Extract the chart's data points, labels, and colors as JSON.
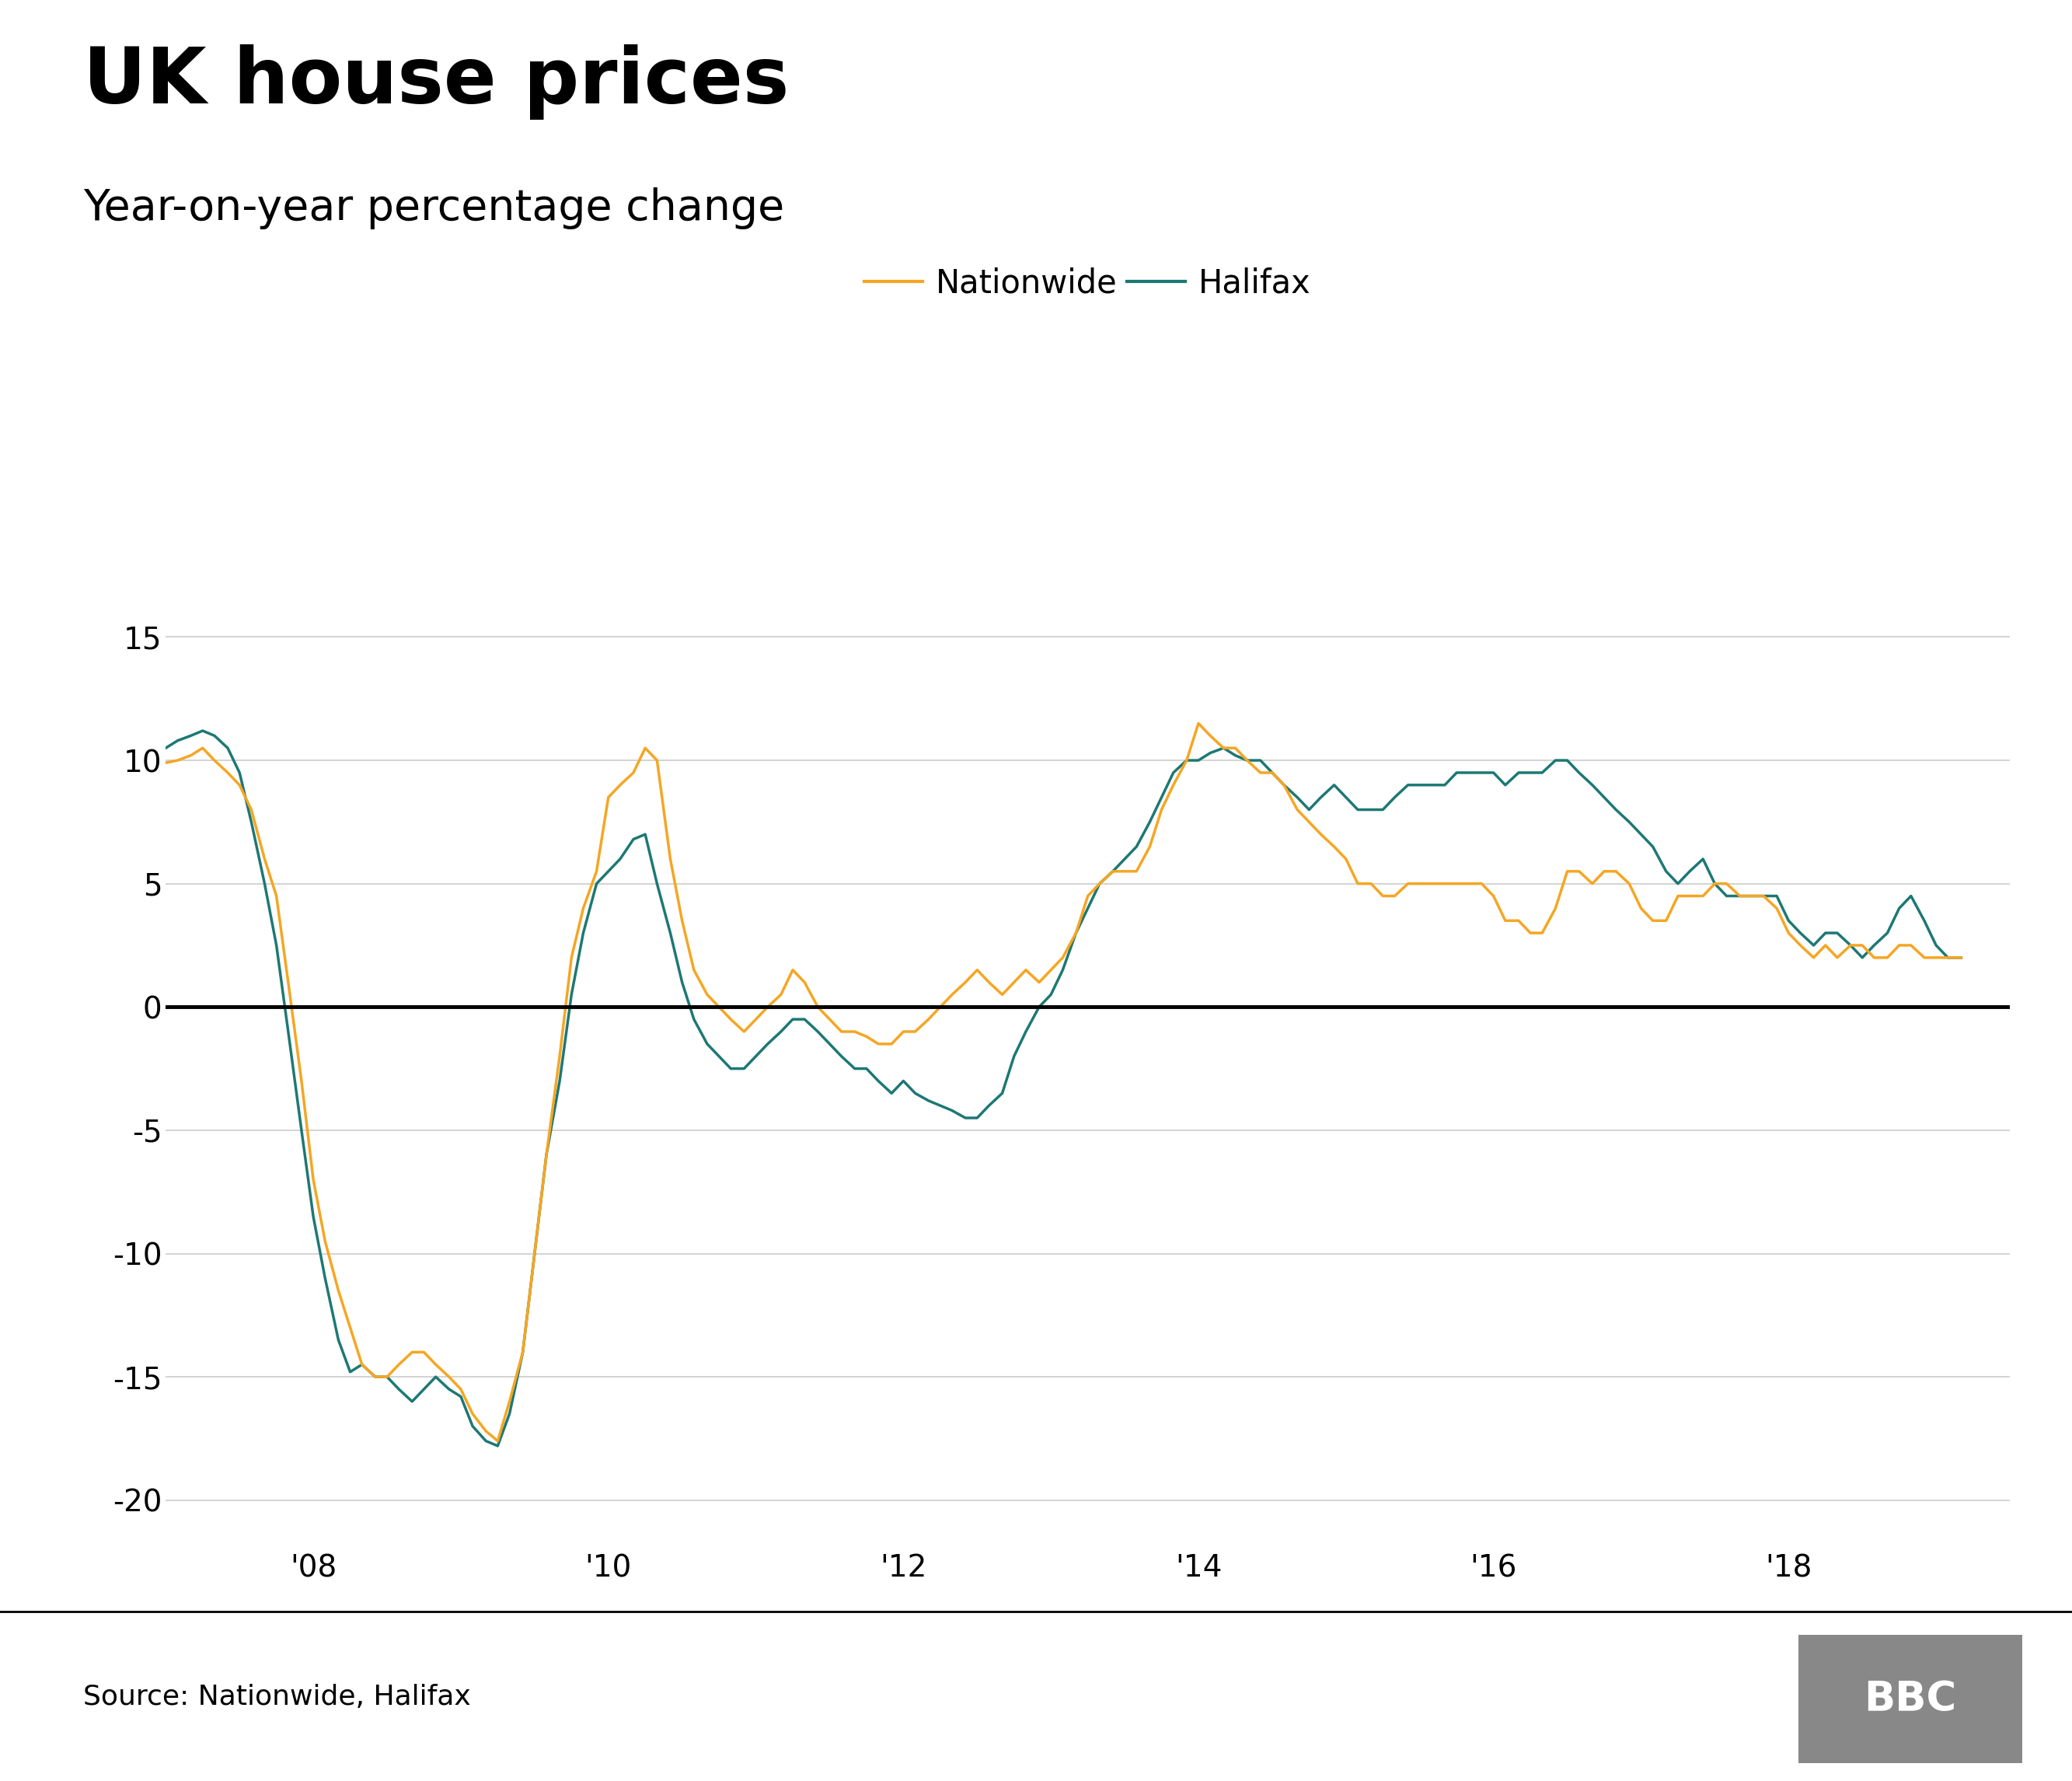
{
  "title": "UK house prices",
  "subtitle": "Year-on-year percentage change",
  "source": "Source: Nationwide, Halifax",
  "nationwide_color": "#F5A623",
  "halifax_color": "#1D7874",
  "background_color": "#ffffff",
  "ylim": [
    -22,
    17
  ],
  "yticks": [
    -20,
    -15,
    -10,
    -5,
    0,
    5,
    10,
    15
  ],
  "xtick_labels": [
    "'08",
    "'10",
    "'12",
    "'14",
    "'16",
    "'18"
  ],
  "nationwide": {
    "x": [
      2007.0,
      2007.08,
      2007.17,
      2007.25,
      2007.33,
      2007.42,
      2007.5,
      2007.58,
      2007.67,
      2007.75,
      2007.83,
      2007.92,
      2008.0,
      2008.08,
      2008.17,
      2008.25,
      2008.33,
      2008.42,
      2008.5,
      2008.58,
      2008.67,
      2008.75,
      2008.83,
      2008.92,
      2009.0,
      2009.08,
      2009.17,
      2009.25,
      2009.33,
      2009.42,
      2009.5,
      2009.58,
      2009.67,
      2009.75,
      2009.83,
      2009.92,
      2010.0,
      2010.08,
      2010.17,
      2010.25,
      2010.33,
      2010.42,
      2010.5,
      2010.58,
      2010.67,
      2010.75,
      2010.83,
      2010.92,
      2011.0,
      2011.08,
      2011.17,
      2011.25,
      2011.33,
      2011.42,
      2011.5,
      2011.58,
      2011.67,
      2011.75,
      2011.83,
      2011.92,
      2012.0,
      2012.08,
      2012.17,
      2012.25,
      2012.33,
      2012.42,
      2012.5,
      2012.58,
      2012.67,
      2012.75,
      2012.83,
      2012.92,
      2013.0,
      2013.08,
      2013.17,
      2013.25,
      2013.33,
      2013.42,
      2013.5,
      2013.58,
      2013.67,
      2013.75,
      2013.83,
      2013.92,
      2014.0,
      2014.08,
      2014.17,
      2014.25,
      2014.33,
      2014.42,
      2014.5,
      2014.58,
      2014.67,
      2014.75,
      2014.83,
      2014.92,
      2015.0,
      2015.08,
      2015.17,
      2015.25,
      2015.33,
      2015.42,
      2015.5,
      2015.58,
      2015.67,
      2015.75,
      2015.83,
      2015.92,
      2016.0,
      2016.08,
      2016.17,
      2016.25,
      2016.33,
      2016.42,
      2016.5,
      2016.58,
      2016.67,
      2016.75,
      2016.83,
      2016.92,
      2017.0,
      2017.08,
      2017.17,
      2017.25,
      2017.33,
      2017.42,
      2017.5,
      2017.58,
      2017.67,
      2017.75,
      2017.83,
      2017.92,
      2018.0,
      2018.08,
      2018.17,
      2018.25,
      2018.33,
      2018.42,
      2018.5,
      2018.58,
      2018.67,
      2018.75,
      2018.83,
      2018.92,
      2019.0,
      2019.08,
      2019.17
    ],
    "y": [
      9.9,
      10.0,
      10.2,
      10.5,
      10.0,
      9.5,
      9.0,
      8.0,
      6.0,
      4.5,
      1.0,
      -3.0,
      -7.0,
      -9.5,
      -11.5,
      -13.0,
      -14.5,
      -15.0,
      -15.0,
      -14.5,
      -14.0,
      -14.0,
      -14.5,
      -15.0,
      -15.5,
      -16.5,
      -17.2,
      -17.6,
      -16.0,
      -14.0,
      -10.0,
      -6.0,
      -2.0,
      2.0,
      4.0,
      5.5,
      8.5,
      9.0,
      9.5,
      10.5,
      10.0,
      6.0,
      3.5,
      1.5,
      0.5,
      0.0,
      -0.5,
      -1.0,
      -0.5,
      0.0,
      0.5,
      1.5,
      1.0,
      0.0,
      -0.5,
      -1.0,
      -1.0,
      -1.2,
      -1.5,
      -1.5,
      -1.0,
      -1.0,
      -0.5,
      0.0,
      0.5,
      1.0,
      1.5,
      1.0,
      0.5,
      1.0,
      1.5,
      1.0,
      1.5,
      2.0,
      3.0,
      4.5,
      5.0,
      5.5,
      5.5,
      5.5,
      6.5,
      8.0,
      9.0,
      10.0,
      11.5,
      11.0,
      10.5,
      10.5,
      10.0,
      9.5,
      9.5,
      9.0,
      8.0,
      7.5,
      7.0,
      6.5,
      6.0,
      5.0,
      5.0,
      4.5,
      4.5,
      5.0,
      5.0,
      5.0,
      5.0,
      5.0,
      5.0,
      5.0,
      4.5,
      3.5,
      3.5,
      3.0,
      3.0,
      4.0,
      5.5,
      5.5,
      5.0,
      5.5,
      5.5,
      5.0,
      4.0,
      3.5,
      3.5,
      4.5,
      4.5,
      4.5,
      5.0,
      5.0,
      4.5,
      4.5,
      4.5,
      4.0,
      3.0,
      2.5,
      2.0,
      2.5,
      2.0,
      2.5,
      2.5,
      2.0,
      2.0,
      2.5,
      2.5,
      2.0,
      2.0,
      2.0,
      2.0
    ]
  },
  "halifax": {
    "x": [
      2007.0,
      2007.08,
      2007.17,
      2007.25,
      2007.33,
      2007.42,
      2007.5,
      2007.58,
      2007.67,
      2007.75,
      2007.83,
      2007.92,
      2008.0,
      2008.08,
      2008.17,
      2008.25,
      2008.33,
      2008.42,
      2008.5,
      2008.58,
      2008.67,
      2008.75,
      2008.83,
      2008.92,
      2009.0,
      2009.08,
      2009.17,
      2009.25,
      2009.33,
      2009.42,
      2009.5,
      2009.58,
      2009.67,
      2009.75,
      2009.83,
      2009.92,
      2010.0,
      2010.08,
      2010.17,
      2010.25,
      2010.33,
      2010.42,
      2010.5,
      2010.58,
      2010.67,
      2010.75,
      2010.83,
      2010.92,
      2011.0,
      2011.08,
      2011.17,
      2011.25,
      2011.33,
      2011.42,
      2011.5,
      2011.58,
      2011.67,
      2011.75,
      2011.83,
      2011.92,
      2012.0,
      2012.08,
      2012.17,
      2012.25,
      2012.33,
      2012.42,
      2012.5,
      2012.58,
      2012.67,
      2012.75,
      2012.83,
      2012.92,
      2013.0,
      2013.08,
      2013.17,
      2013.25,
      2013.33,
      2013.42,
      2013.5,
      2013.58,
      2013.67,
      2013.75,
      2013.83,
      2013.92,
      2014.0,
      2014.08,
      2014.17,
      2014.25,
      2014.33,
      2014.42,
      2014.5,
      2014.58,
      2014.67,
      2014.75,
      2014.83,
      2014.92,
      2015.0,
      2015.08,
      2015.17,
      2015.25,
      2015.33,
      2015.42,
      2015.5,
      2015.58,
      2015.67,
      2015.75,
      2015.83,
      2015.92,
      2016.0,
      2016.08,
      2016.17,
      2016.25,
      2016.33,
      2016.42,
      2016.5,
      2016.58,
      2016.67,
      2016.75,
      2016.83,
      2016.92,
      2017.0,
      2017.08,
      2017.17,
      2017.25,
      2017.33,
      2017.42,
      2017.5,
      2017.58,
      2017.67,
      2017.75,
      2017.83,
      2017.92,
      2018.0,
      2018.08,
      2018.17,
      2018.25,
      2018.33,
      2018.42,
      2018.5,
      2018.58,
      2018.67,
      2018.75,
      2018.83,
      2018.92,
      2019.0,
      2019.08,
      2019.17
    ],
    "y": [
      10.5,
      10.8,
      11.0,
      11.2,
      11.0,
      10.5,
      9.5,
      7.5,
      5.0,
      2.5,
      -1.0,
      -5.0,
      -8.5,
      -11.0,
      -13.5,
      -14.8,
      -14.5,
      -15.0,
      -15.0,
      -15.5,
      -16.0,
      -15.5,
      -15.0,
      -15.5,
      -15.8,
      -17.0,
      -17.6,
      -17.8,
      -16.5,
      -14.0,
      -10.0,
      -6.0,
      -3.0,
      0.5,
      3.0,
      5.0,
      5.5,
      6.0,
      6.8,
      7.0,
      5.0,
      3.0,
      1.0,
      -0.5,
      -1.5,
      -2.0,
      -2.5,
      -2.5,
      -2.0,
      -1.5,
      -1.0,
      -0.5,
      -0.5,
      -1.0,
      -1.5,
      -2.0,
      -2.5,
      -2.5,
      -3.0,
      -3.5,
      -3.0,
      -3.5,
      -3.8,
      -4.0,
      -4.2,
      -4.5,
      -4.5,
      -4.0,
      -3.5,
      -2.0,
      -1.0,
      0.0,
      0.5,
      1.5,
      3.0,
      4.0,
      5.0,
      5.5,
      6.0,
      6.5,
      7.5,
      8.5,
      9.5,
      10.0,
      10.0,
      10.3,
      10.5,
      10.2,
      10.0,
      10.0,
      9.5,
      9.0,
      8.5,
      8.0,
      8.5,
      9.0,
      8.5,
      8.0,
      8.0,
      8.0,
      8.5,
      9.0,
      9.0,
      9.0,
      9.0,
      9.5,
      9.5,
      9.5,
      9.5,
      9.0,
      9.5,
      9.5,
      9.5,
      10.0,
      10.0,
      9.5,
      9.0,
      8.5,
      8.0,
      7.5,
      7.0,
      6.5,
      5.5,
      5.0,
      5.5,
      6.0,
      5.0,
      4.5,
      4.5,
      4.5,
      4.5,
      4.5,
      3.5,
      3.0,
      2.5,
      3.0,
      3.0,
      2.5,
      2.0,
      2.5,
      3.0,
      4.0,
      4.5,
      3.5,
      2.5,
      2.0,
      2.0
    ]
  },
  "zero_line_color": "#000000",
  "grid_color": "#cccccc",
  "xtick_positions": [
    2008.0,
    2010.0,
    2012.0,
    2014.0,
    2016.0,
    2018.0
  ],
  "title_fontsize": 72,
  "subtitle_fontsize": 40,
  "tick_fontsize": 28,
  "legend_fontsize": 30,
  "source_fontsize": 26,
  "line_width": 2.5
}
